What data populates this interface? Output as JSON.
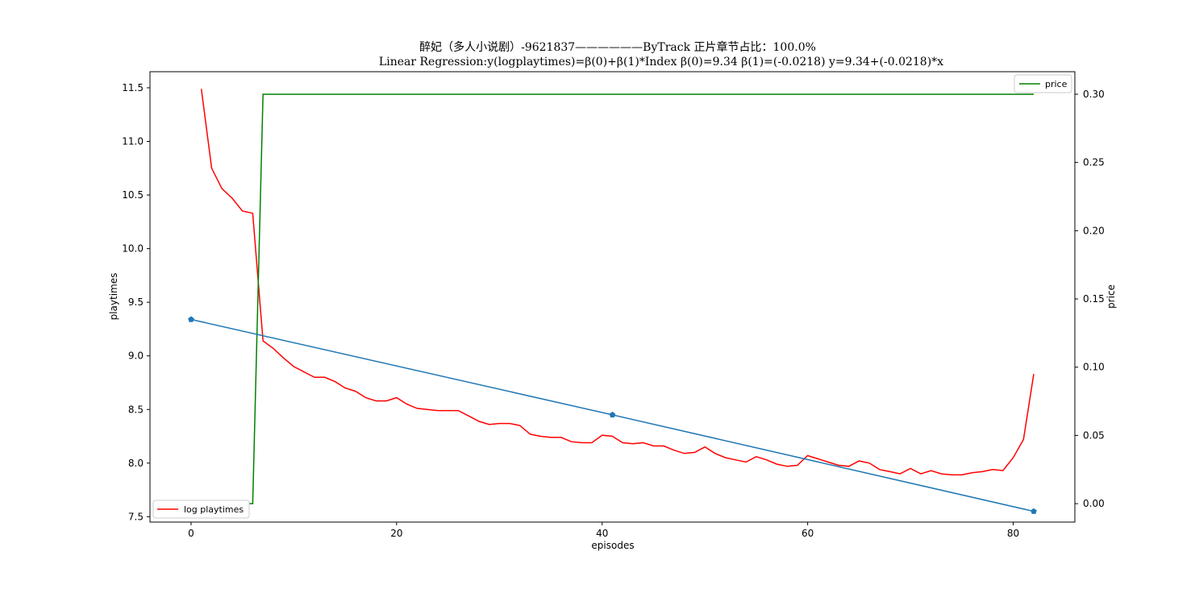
{
  "chart_data": {
    "type": "line",
    "title": "醉妃（多人小说剧）-9621837——————ByTrack      正片章节占比：100.0%",
    "subtitle": "Linear Regression:y(logplaytimes)=β(0)+β(1)*Index    β(0)=9.34   β(1)=(-0.0218)     y=9.34+(-0.0218)*x",
    "xlabel": "episodes",
    "ylabel_left": "playtimes",
    "ylabel_right": "price",
    "xlim": [
      -4,
      86
    ],
    "ylim_left": [
      7.45,
      11.65
    ],
    "ylim_right": [
      -0.0135,
      0.3165
    ],
    "xticks": [
      0,
      20,
      40,
      60,
      80
    ],
    "yticks_left": [
      7.5,
      8.0,
      8.5,
      9.0,
      9.5,
      10.0,
      10.5,
      11.0,
      11.5
    ],
    "yticks_left_labels": [
      "7.5",
      "8.0",
      "8.5",
      "9.0",
      "9.5",
      "10.0",
      "10.5",
      "11.0",
      "11.5"
    ],
    "yticks_right": [
      0.0,
      0.05,
      0.1,
      0.15,
      0.2,
      0.25,
      0.3
    ],
    "yticks_right_labels": [
      "0.00",
      "0.05",
      "0.10",
      "0.15",
      "0.20",
      "0.25",
      "0.30"
    ],
    "grid": false,
    "series": [
      {
        "name": "log playtimes",
        "axis": "left",
        "color": "#ff0000",
        "x": [
          1,
          2,
          3,
          4,
          5,
          6,
          7,
          8,
          9,
          10,
          11,
          12,
          13,
          14,
          15,
          16,
          17,
          18,
          19,
          20,
          21,
          22,
          23,
          24,
          25,
          26,
          27,
          28,
          29,
          30,
          31,
          32,
          33,
          34,
          35,
          36,
          37,
          38,
          39,
          40,
          41,
          42,
          43,
          44,
          45,
          46,
          47,
          48,
          49,
          50,
          51,
          52,
          53,
          54,
          55,
          56,
          57,
          58,
          59,
          60,
          61,
          62,
          63,
          64,
          65,
          66,
          67,
          68,
          69,
          70,
          71,
          72,
          73,
          74,
          75,
          76,
          77,
          78,
          79,
          80,
          81,
          82
        ],
        "y": [
          11.49,
          10.75,
          10.56,
          10.47,
          10.35,
          10.33,
          9.14,
          9.07,
          8.98,
          8.9,
          8.85,
          8.8,
          8.8,
          8.76,
          8.7,
          8.67,
          8.61,
          8.58,
          8.58,
          8.61,
          8.55,
          8.51,
          8.5,
          8.49,
          8.49,
          8.49,
          8.44,
          8.39,
          8.36,
          8.37,
          8.37,
          8.35,
          8.27,
          8.25,
          8.24,
          8.24,
          8.2,
          8.19,
          8.19,
          8.26,
          8.25,
          8.19,
          8.18,
          8.19,
          8.16,
          8.16,
          8.12,
          8.09,
          8.1,
          8.15,
          8.09,
          8.05,
          8.03,
          8.01,
          8.06,
          8.03,
          7.99,
          7.97,
          7.98,
          8.07,
          8.04,
          8.01,
          7.98,
          7.97,
          8.02,
          8.0,
          7.94,
          7.92,
          7.9,
          7.95,
          7.9,
          7.93,
          7.9,
          7.89,
          7.89,
          7.91,
          7.92,
          7.94,
          7.93,
          8.05,
          8.22,
          8.83
        ]
      },
      {
        "name": "price",
        "axis": "right",
        "color": "#008000",
        "x": [
          1,
          2,
          3,
          4,
          5,
          6,
          7,
          8,
          9,
          10,
          20,
          30,
          40,
          50,
          60,
          70,
          80,
          82
        ],
        "y": [
          0,
          0,
          0,
          0,
          0,
          0,
          0.3,
          0.3,
          0.3,
          0.3,
          0.3,
          0.3,
          0.3,
          0.3,
          0.3,
          0.3,
          0.3,
          0.3
        ]
      },
      {
        "axis": "left",
        "color": "#1f77b4",
        "x": [
          0,
          41,
          82
        ],
        "y": [
          9.34,
          8.45,
          7.55
        ],
        "markers": true
      }
    ],
    "legend_left_placement": "lower-left",
    "legend_right_placement": "upper-right"
  }
}
